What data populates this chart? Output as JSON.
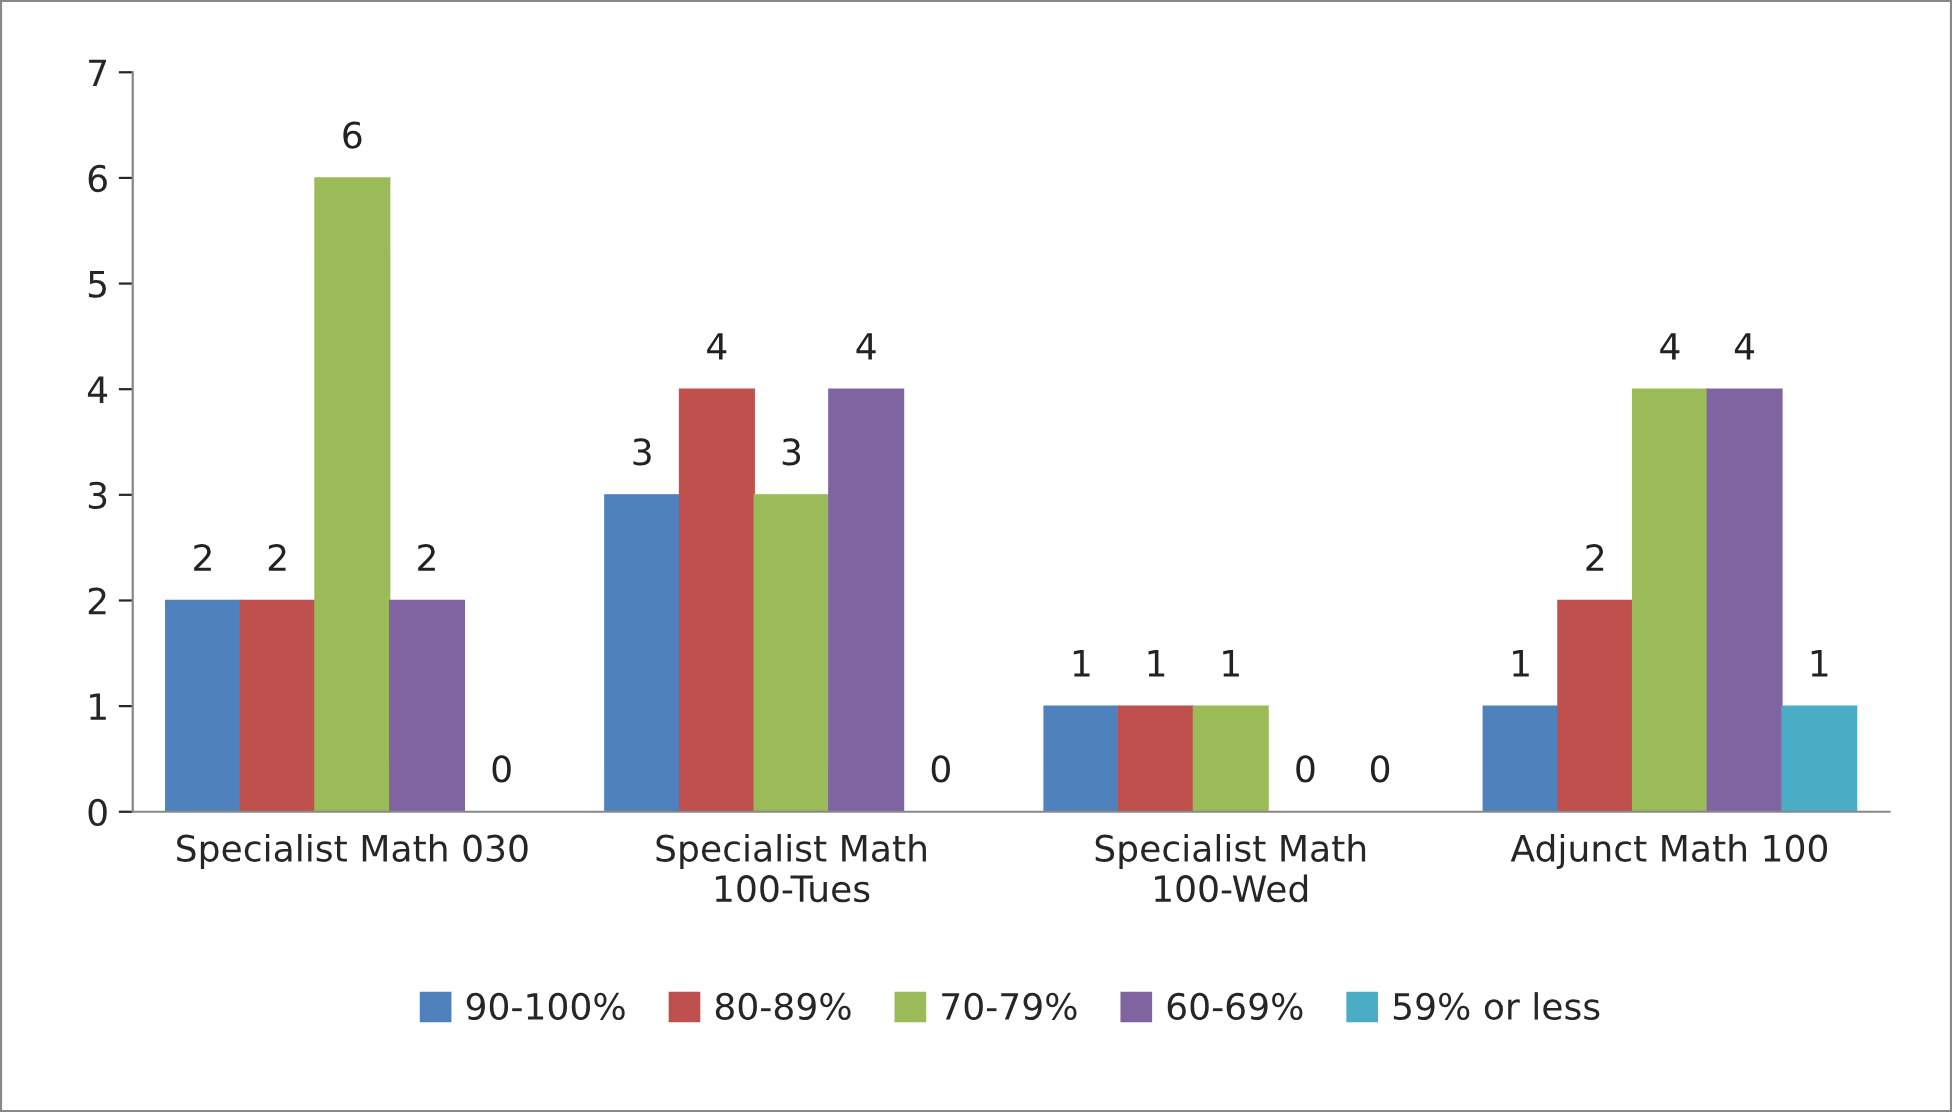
{
  "chart_data": {
    "type": "bar",
    "categories": [
      "Specialist Math 030",
      "Specialist Math 100-Tues",
      "Specialist Math 100-Wed",
      "Adjunct Math 100"
    ],
    "series": [
      {
        "name": "90-100%",
        "color": "#4f81bd",
        "values": [
          2,
          3,
          1,
          1
        ]
      },
      {
        "name": "80-89%",
        "color": "#c0504d",
        "values": [
          2,
          4,
          1,
          2
        ]
      },
      {
        "name": "70-79%",
        "color": "#9bbb59",
        "values": [
          6,
          3,
          1,
          4
        ]
      },
      {
        "name": "60-69%",
        "color": "#8064a2",
        "values": [
          2,
          4,
          0,
          4
        ]
      },
      {
        "name": "59% or less",
        "color": "#4bacc6",
        "values": [
          0,
          0,
          0,
          1
        ]
      }
    ],
    "ylim": [
      0,
      7
    ],
    "yticks": [
      0,
      1,
      2,
      3,
      4,
      5,
      6,
      7
    ],
    "grid": false,
    "legend": "bottom",
    "data_labels": true
  }
}
